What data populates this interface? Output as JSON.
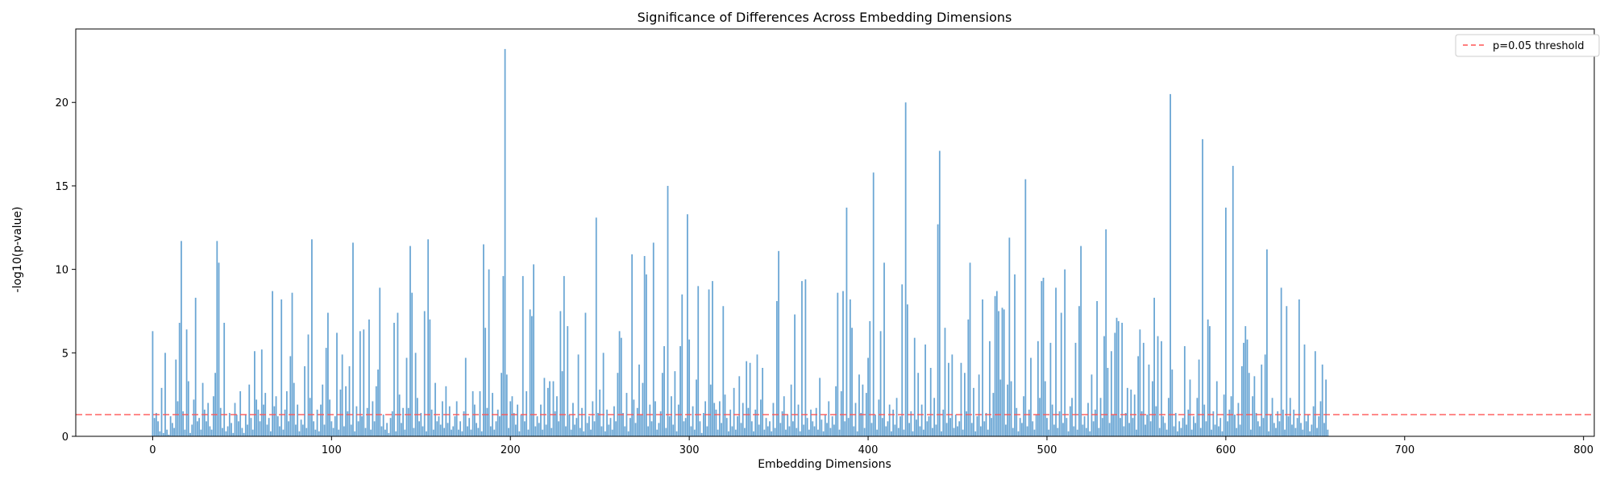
{
  "chart_data": {
    "type": "bar",
    "title": "Significance of Differences Across Embedding Dimensions",
    "xlabel": "Embedding Dimensions",
    "ylabel": "-log10(p-value)",
    "xlim": [
      -43,
      806
    ],
    "ylim": [
      0,
      24.4
    ],
    "xticks": [
      0,
      100,
      200,
      300,
      400,
      500,
      600,
      700,
      800
    ],
    "yticks": [
      0,
      5,
      10,
      15,
      20
    ],
    "grid": false,
    "legend_position": "top-right",
    "colors": {
      "bars": "#6aa6d4",
      "threshold": "#ff5555"
    },
    "series": [
      {
        "name": "",
        "x_start": 0,
        "x_step": 1,
        "values": [
          6.3,
          1.1,
          1.4,
          0.9,
          0.3,
          2.9,
          0.2,
          5.0,
          0.4,
          0.1,
          1.2,
          0.8,
          0.5,
          4.6,
          2.1,
          6.8,
          11.7,
          1.5,
          0.4,
          6.4,
          3.3,
          0.2,
          0.7,
          2.2,
          8.3,
          0.9,
          1.1,
          0.4,
          3.2,
          1.6,
          0.9,
          2.0,
          0.6,
          0.4,
          2.4,
          3.8,
          11.7,
          10.4,
          1.7,
          0.5,
          6.8,
          0.3,
          0.6,
          1.4,
          0.8,
          0.2,
          2.0,
          1.3,
          0.9,
          2.7,
          0.5,
          0.2,
          1.3,
          0.7,
          3.1,
          1.1,
          0.4,
          5.1,
          2.2,
          1.6,
          0.9,
          5.2,
          1.9,
          2.6,
          0.7,
          1.1,
          0.3,
          8.7,
          1.8,
          2.4,
          1.2,
          0.6,
          8.2,
          0.4,
          1.6,
          2.7,
          0.9,
          4.8,
          8.6,
          3.2,
          0.7,
          1.9,
          0.3,
          1.0,
          0.7,
          4.2,
          0.5,
          6.1,
          2.3,
          11.8,
          0.9,
          0.4,
          1.6,
          0.3,
          1.9,
          3.1,
          0.7,
          5.3,
          7.4,
          2.2,
          0.9,
          0.5,
          1.2,
          6.2,
          0.4,
          2.8,
          4.9,
          0.6,
          3.0,
          1.5,
          4.2,
          0.7,
          11.6,
          0.3,
          1.8,
          0.9,
          6.3,
          1.2,
          6.4,
          0.5,
          1.7,
          7.0,
          0.4,
          2.1,
          0.9,
          3.0,
          4.0,
          8.9,
          0.6,
          1.3,
          0.4,
          0.8,
          0.2,
          1.1,
          1.5,
          6.8,
          0.3,
          7.4,
          2.5,
          0.8,
          1.7,
          0.4,
          4.7,
          1.7,
          11.4,
          8.6,
          0.5,
          5.0,
          2.3,
          0.9,
          1.4,
          0.6,
          7.5,
          0.3,
          11.8,
          7.0,
          1.6,
          0.4,
          3.2,
          0.9,
          1.2,
          0.7,
          2.1,
          0.5,
          3.0,
          0.8,
          1.8,
          0.4,
          0.6,
          1.2,
          2.1,
          0.4,
          0.9,
          0.3,
          1.5,
          4.7,
          0.6,
          1.1,
          0.4,
          2.7,
          1.9,
          0.8,
          0.5,
          2.7,
          0.3,
          11.5,
          6.5,
          1.7,
          10.0,
          0.6,
          2.6,
          0.4,
          0.9,
          1.6,
          1.2,
          3.8,
          9.6,
          23.2,
          3.7,
          0.5,
          2.1,
          2.4,
          1.4,
          0.7,
          1.9,
          0.3,
          1.3,
          9.6,
          0.9,
          2.7,
          0.4,
          7.6,
          7.2,
          10.3,
          0.6,
          1.2,
          0.8,
          1.9,
          0.4,
          3.5,
          0.7,
          2.9,
          3.3,
          0.5,
          3.3,
          1.5,
          2.4,
          0.9,
          7.5,
          3.9,
          9.6,
          0.6,
          6.6,
          1.3,
          0.4,
          2.0,
          0.7,
          1.1,
          4.9,
          0.5,
          1.7,
          0.3,
          7.4,
          0.8,
          1.2,
          0.4,
          2.1,
          0.9,
          13.1,
          1.4,
          2.8,
          0.6,
          5.0,
          0.3,
          1.6,
          0.7,
          1.1,
          0.4,
          1.8,
          0.9,
          3.8,
          6.3,
          5.9,
          1.4,
          0.6,
          2.6,
          0.3,
          1.1,
          10.9,
          2.2,
          0.8,
          1.7,
          4.3,
          1.3,
          3.2,
          10.8,
          9.7,
          0.6,
          1.9,
          0.9,
          11.6,
          2.1,
          0.4,
          0.8,
          1.5,
          3.8,
          5.4,
          0.5,
          15.0,
          1.2,
          2.4,
          0.7,
          3.9,
          0.3,
          1.9,
          5.4,
          8.5,
          0.9,
          1.1,
          13.3,
          5.8,
          0.6,
          1.8,
          0.4,
          3.4,
          9.0,
          0.9,
          0.2,
          1.4,
          2.1,
          0.6,
          8.8,
          3.1,
          9.3,
          2.0,
          1.6,
          0.4,
          2.1,
          0.8,
          7.8,
          2.5,
          1.1,
          0.3,
          1.6,
          0.6,
          2.9,
          0.4,
          1.2,
          3.6,
          0.8,
          2.0,
          0.5,
          4.5,
          1.7,
          4.4,
          0.9,
          0.3,
          1.6,
          4.9,
          0.7,
          2.2,
          4.1,
          0.4,
          1.1,
          0.6,
          0.9,
          0.3,
          2.0,
          0.5,
          8.1,
          11.1,
          0.8,
          1.5,
          2.4,
          0.4,
          1.3,
          0.6,
          3.1,
          0.9,
          7.3,
          0.5,
          1.9,
          0.3,
          9.3,
          0.7,
          9.4,
          1.1,
          0.4,
          1.6,
          0.9,
          0.6,
          1.7,
          0.4,
          3.5,
          1.0,
          0.3,
          1.3,
          0.8,
          2.1,
          0.5,
          1.2,
          0.7,
          3.0,
          8.6,
          0.4,
          2.7,
          8.7,
          0.9,
          13.7,
          1.1,
          8.2,
          6.5,
          0.6,
          2.0,
          0.3,
          3.7,
          1.4,
          3.1,
          0.5,
          2.6,
          4.7,
          6.9,
          0.8,
          15.8,
          1.3,
          0.4,
          2.2,
          6.3,
          1.1,
          10.4,
          0.6,
          0.9,
          1.9,
          0.3,
          1.6,
          0.7,
          2.3,
          0.5,
          1.2,
          9.1,
          0.4,
          20.0,
          7.9,
          0.8,
          1.5,
          0.3,
          5.9,
          1.0,
          3.8,
          0.6,
          1.9,
          0.4,
          5.5,
          0.9,
          1.2,
          4.1,
          0.5,
          2.3,
          0.7,
          12.7,
          17.1,
          0.3,
          1.6,
          6.5,
          0.8,
          4.4,
          1.1,
          4.9,
          0.5,
          1.3,
          0.6,
          0.9,
          4.4,
          0.4,
          3.8,
          1.5,
          7.0,
          10.4,
          0.8,
          2.9,
          0.3,
          1.2,
          3.7,
          0.6,
          8.2,
          0.9,
          1.4,
          0.4,
          5.7,
          1.1,
          2.6,
          8.4,
          8.7,
          7.5,
          3.4,
          7.7,
          7.6,
          0.7,
          3.1,
          11.9,
          3.3,
          0.5,
          9.7,
          1.7,
          0.3,
          1.1,
          0.8,
          2.4,
          15.4,
          0.6,
          1.6,
          4.7,
          0.9,
          0.4,
          1.3,
          5.7,
          2.3,
          9.3,
          9.5,
          3.3,
          1.1,
          0.4,
          5.6,
          1.9,
          0.7,
          8.9,
          0.5,
          1.5,
          7.4,
          0.8,
          10.0,
          1.1,
          0.3,
          1.8,
          2.3,
          0.6,
          5.6,
          0.4,
          7.8,
          11.4,
          0.7,
          1.2,
          0.5,
          2.0,
          0.3,
          3.7,
          0.9,
          1.6,
          8.1,
          0.5,
          2.3,
          1.1,
          6.0,
          12.4,
          4.1,
          0.8,
          5.1,
          1.3,
          6.2,
          7.1,
          6.9,
          1.1,
          6.8,
          0.6,
          1.4,
          2.9,
          0.8,
          2.8,
          1.1,
          2.5,
          0.4,
          4.8,
          6.4,
          1.5,
          5.6,
          0.7,
          1.3,
          4.3,
          0.9,
          3.3,
          8.3,
          1.8,
          6.0,
          0.5,
          5.7,
          1.2,
          0.8,
          0.4,
          2.3,
          20.5,
          4.0,
          0.6,
          1.4,
          0.3,
          0.9,
          0.5,
          1.1,
          5.4,
          0.7,
          1.6,
          3.4,
          0.4,
          1.2,
          0.8,
          2.3,
          4.6,
          0.5,
          17.8,
          1.9,
          0.9,
          7.0,
          6.6,
          0.4,
          1.5,
          0.7,
          3.3,
          0.6,
          1.1,
          0.3,
          2.5,
          13.7,
          0.9,
          1.6,
          2.4,
          16.2,
          1.3,
          0.5,
          2.0,
          0.7,
          4.2,
          5.6,
          6.6,
          5.8,
          3.8,
          0.4,
          2.4,
          3.6,
          1.4,
          0.9,
          0.6,
          4.3,
          1.1,
          4.9,
          11.2,
          0.3,
          1.3,
          2.3,
          0.8,
          0.5,
          1.5,
          0.9,
          8.9,
          1.6,
          0.4,
          7.8,
          1.2,
          2.3,
          0.7,
          1.6,
          0.5,
          1.1,
          8.2,
          0.8,
          0.4,
          5.5,
          0.9,
          1.3,
          0.3,
          0.7,
          1.8,
          5.1,
          0.5,
          1.2,
          2.1,
          4.3,
          0.8,
          3.4,
          0.4
        ]
      }
    ],
    "threshold": {
      "label": "p=0.05 threshold",
      "y": 1.3
    }
  }
}
